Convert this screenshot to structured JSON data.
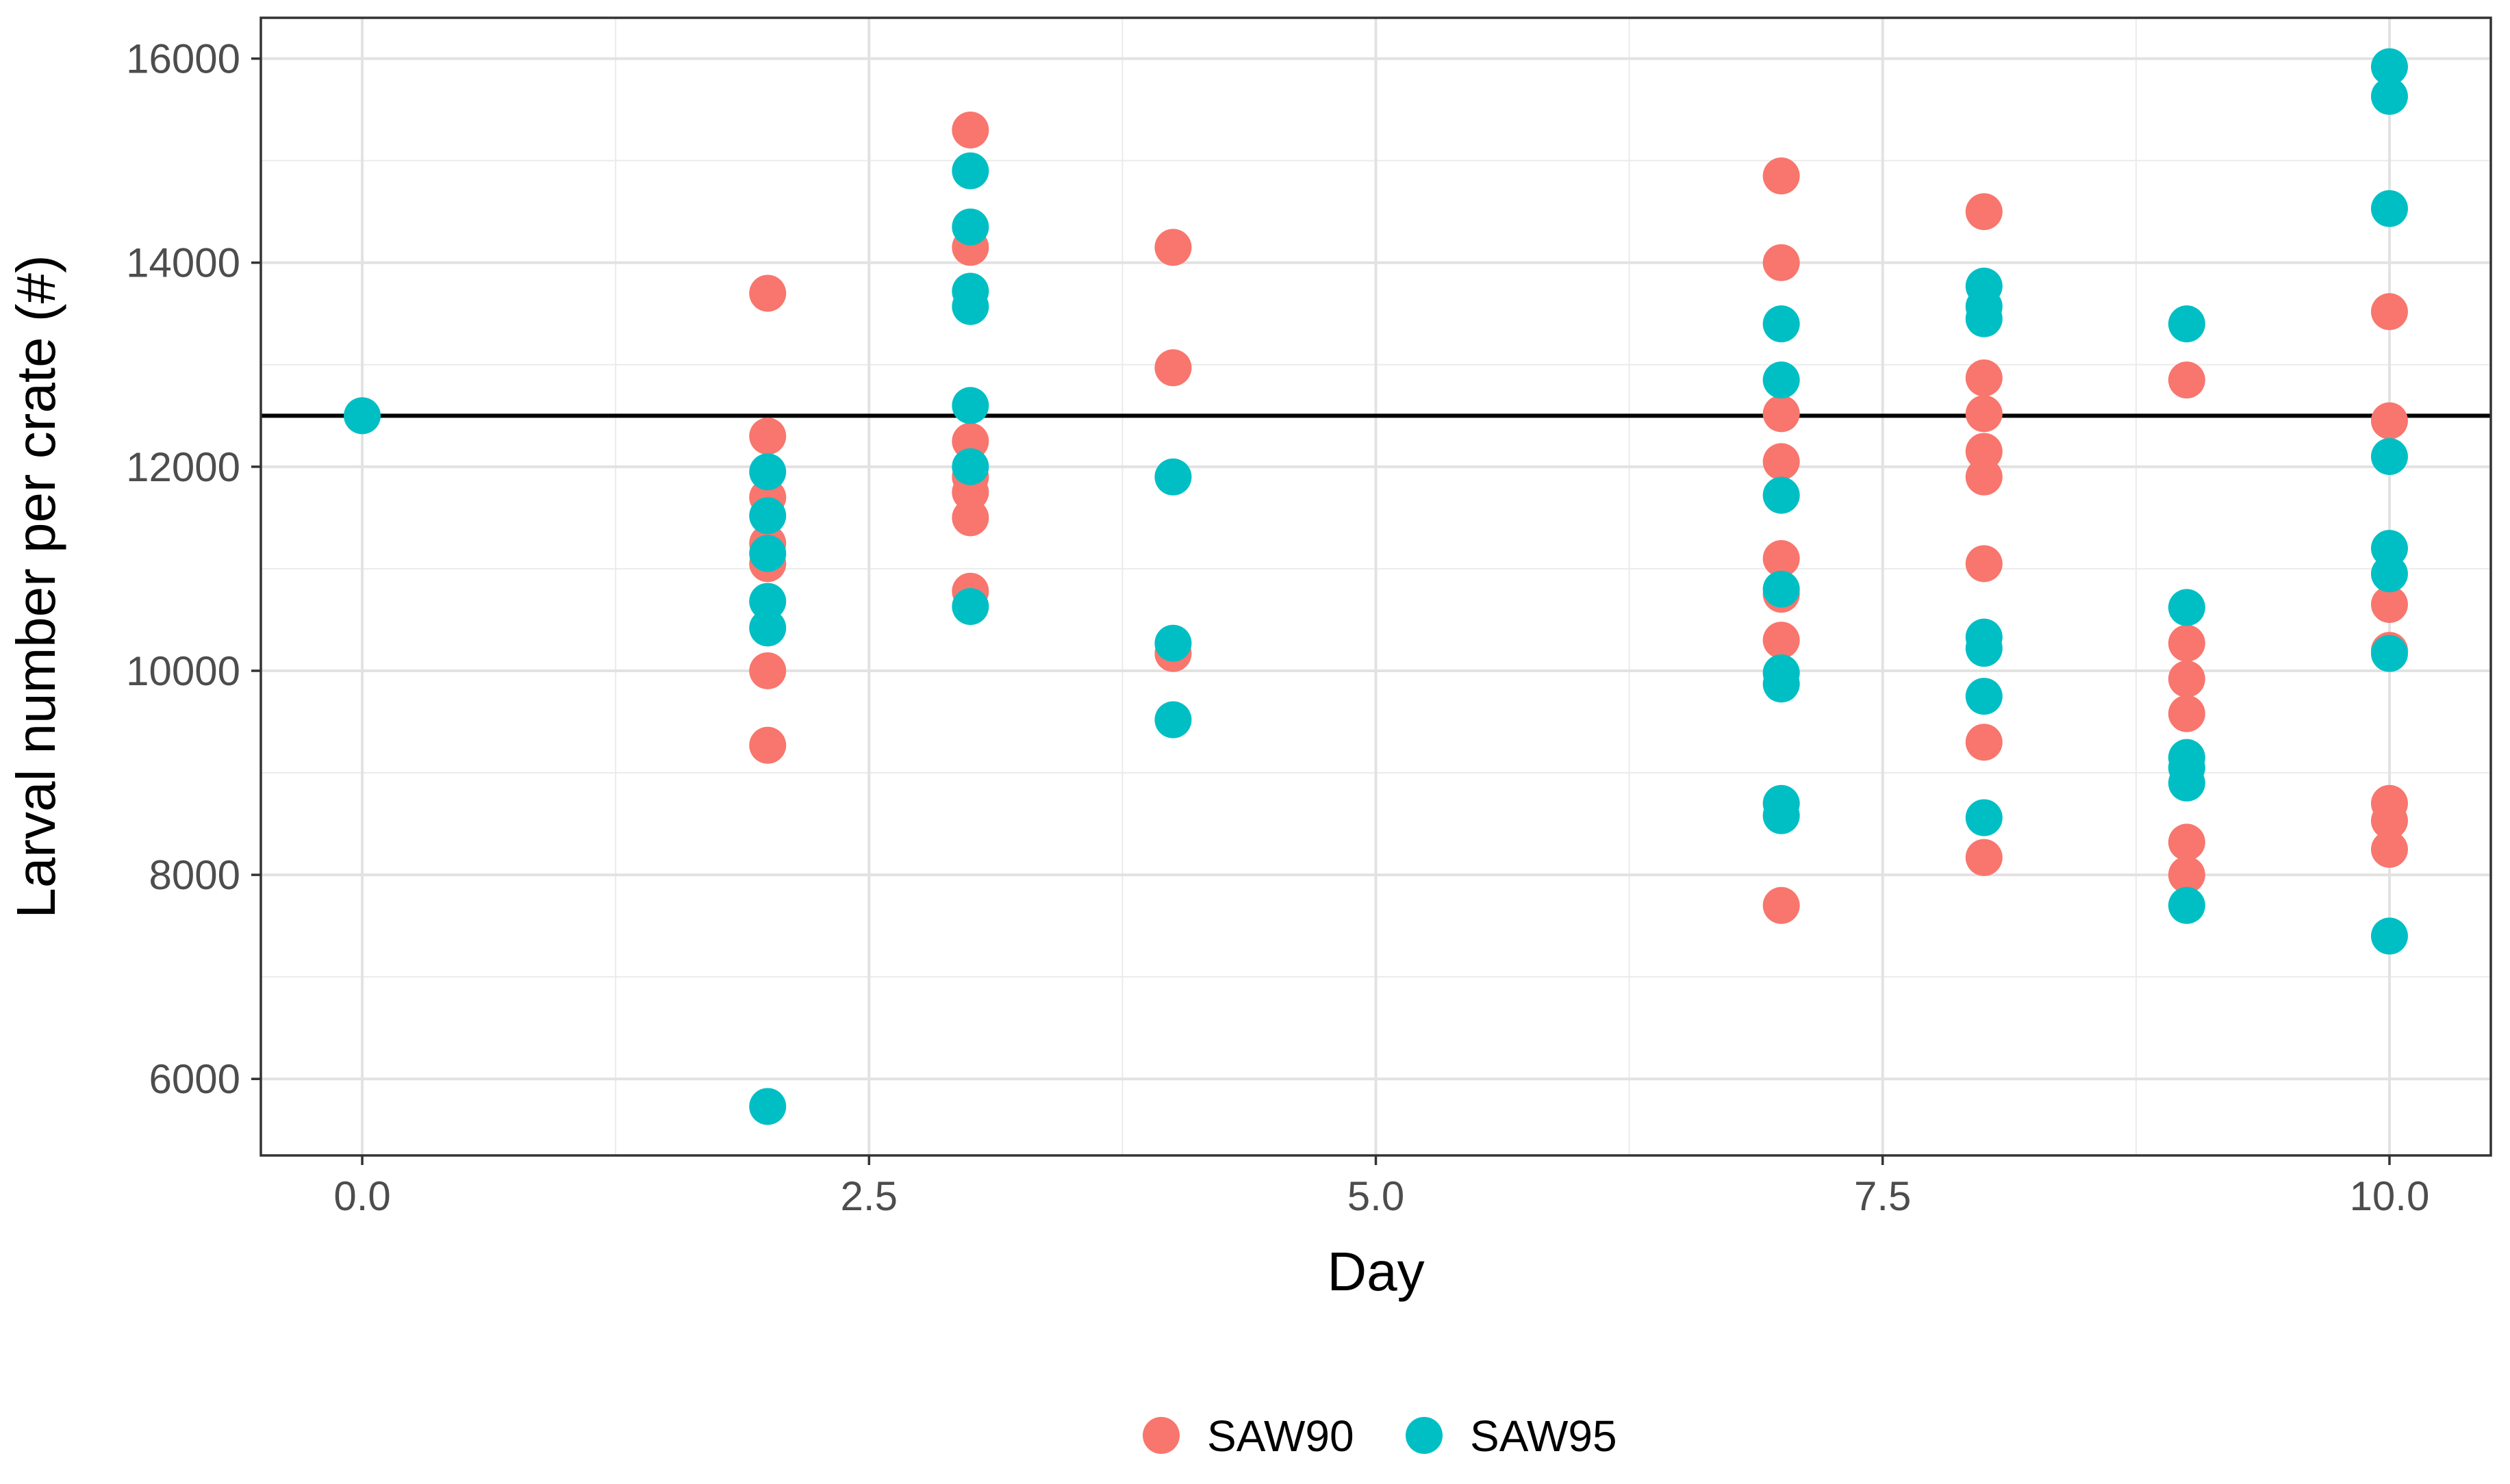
{
  "chart_data": {
    "type": "scatter",
    "title": "",
    "xlabel": "Day",
    "ylabel": "Larval number per crate (#)",
    "xlim": [
      -0.5,
      10.5
    ],
    "ylim": [
      5250,
      16400
    ],
    "x_ticks": [
      0,
      2.5,
      5,
      7.5,
      10
    ],
    "x_tick_labels": [
      "0.0",
      "2.5",
      "5.0",
      "7.5",
      "10.0"
    ],
    "x_minor_ticks": [
      1.25,
      3.75,
      6.25,
      8.75
    ],
    "y_ticks": [
      6000,
      8000,
      10000,
      12000,
      14000,
      16000
    ],
    "y_tick_labels": [
      "6000",
      "8000",
      "10000",
      "12000",
      "14000",
      "16000"
    ],
    "y_minor_ticks": [
      7000,
      9000,
      11000,
      13000,
      15000
    ],
    "grid": true,
    "reference_line": {
      "y": 12500,
      "color": "#000000"
    },
    "legend_position": "bottom",
    "series": [
      {
        "name": "SAW90",
        "color": "#F8766D",
        "points": [
          {
            "x": 2,
            "y": 13700
          },
          {
            "x": 2,
            "y": 12300
          },
          {
            "x": 2,
            "y": 11700
          },
          {
            "x": 2,
            "y": 11250
          },
          {
            "x": 2,
            "y": 11050
          },
          {
            "x": 2,
            "y": 10000
          },
          {
            "x": 2,
            "y": 9270
          },
          {
            "x": 3,
            "y": 15300
          },
          {
            "x": 3,
            "y": 14150
          },
          {
            "x": 3,
            "y": 12250
          },
          {
            "x": 3,
            "y": 11900
          },
          {
            "x": 3,
            "y": 11750
          },
          {
            "x": 3,
            "y": 11500
          },
          {
            "x": 3,
            "y": 10780
          },
          {
            "x": 4,
            "y": 14150
          },
          {
            "x": 4,
            "y": 12970
          },
          {
            "x": 4,
            "y": 10170
          },
          {
            "x": 7,
            "y": 14850
          },
          {
            "x": 7,
            "y": 14000
          },
          {
            "x": 7,
            "y": 12520
          },
          {
            "x": 7,
            "y": 12050
          },
          {
            "x": 7,
            "y": 11100
          },
          {
            "x": 7,
            "y": 10750
          },
          {
            "x": 7,
            "y": 10300
          },
          {
            "x": 7,
            "y": 7700
          },
          {
            "x": 8,
            "y": 14500
          },
          {
            "x": 8,
            "y": 12870
          },
          {
            "x": 8,
            "y": 12520
          },
          {
            "x": 8,
            "y": 12150
          },
          {
            "x": 8,
            "y": 11900
          },
          {
            "x": 8,
            "y": 11050
          },
          {
            "x": 8,
            "y": 9300
          },
          {
            "x": 8,
            "y": 8170
          },
          {
            "x": 9,
            "y": 12850
          },
          {
            "x": 9,
            "y": 10270
          },
          {
            "x": 9,
            "y": 9920
          },
          {
            "x": 9,
            "y": 9580
          },
          {
            "x": 9,
            "y": 8320
          },
          {
            "x": 9,
            "y": 8000
          },
          {
            "x": 10,
            "y": 13520
          },
          {
            "x": 10,
            "y": 12450
          },
          {
            "x": 10,
            "y": 10650
          },
          {
            "x": 10,
            "y": 10200
          },
          {
            "x": 10,
            "y": 8700
          },
          {
            "x": 10,
            "y": 8530
          },
          {
            "x": 10,
            "y": 8250
          }
        ]
      },
      {
        "name": "SAW95",
        "color": "#00BFC4",
        "points": [
          {
            "x": 0,
            "y": 12500
          },
          {
            "x": 2,
            "y": 11950
          },
          {
            "x": 2,
            "y": 11520
          },
          {
            "x": 2,
            "y": 11150
          },
          {
            "x": 2,
            "y": 10680
          },
          {
            "x": 2,
            "y": 10420
          },
          {
            "x": 2,
            "y": 5730
          },
          {
            "x": 3,
            "y": 14900
          },
          {
            "x": 3,
            "y": 14350
          },
          {
            "x": 3,
            "y": 13720
          },
          {
            "x": 3,
            "y": 13570
          },
          {
            "x": 3,
            "y": 12600
          },
          {
            "x": 3,
            "y": 12000
          },
          {
            "x": 3,
            "y": 10630
          },
          {
            "x": 4,
            "y": 11900
          },
          {
            "x": 4,
            "y": 10270
          },
          {
            "x": 4,
            "y": 9520
          },
          {
            "x": 7,
            "y": 13400
          },
          {
            "x": 7,
            "y": 12850
          },
          {
            "x": 7,
            "y": 11720
          },
          {
            "x": 7,
            "y": 10800
          },
          {
            "x": 7,
            "y": 9980
          },
          {
            "x": 7,
            "y": 9870
          },
          {
            "x": 7,
            "y": 8700
          },
          {
            "x": 7,
            "y": 8580
          },
          {
            "x": 8,
            "y": 13770
          },
          {
            "x": 8,
            "y": 13570
          },
          {
            "x": 8,
            "y": 13450
          },
          {
            "x": 8,
            "y": 10330
          },
          {
            "x": 8,
            "y": 10220
          },
          {
            "x": 8,
            "y": 9750
          },
          {
            "x": 8,
            "y": 8560
          },
          {
            "x": 9,
            "y": 13400
          },
          {
            "x": 9,
            "y": 10620
          },
          {
            "x": 9,
            "y": 9150
          },
          {
            "x": 9,
            "y": 9050
          },
          {
            "x": 9,
            "y": 8900
          },
          {
            "x": 9,
            "y": 7700
          },
          {
            "x": 10,
            "y": 15920
          },
          {
            "x": 10,
            "y": 15630
          },
          {
            "x": 10,
            "y": 14530
          },
          {
            "x": 10,
            "y": 12100
          },
          {
            "x": 10,
            "y": 11200
          },
          {
            "x": 10,
            "y": 10950
          },
          {
            "x": 10,
            "y": 10170
          },
          {
            "x": 10,
            "y": 7400
          }
        ]
      }
    ]
  }
}
